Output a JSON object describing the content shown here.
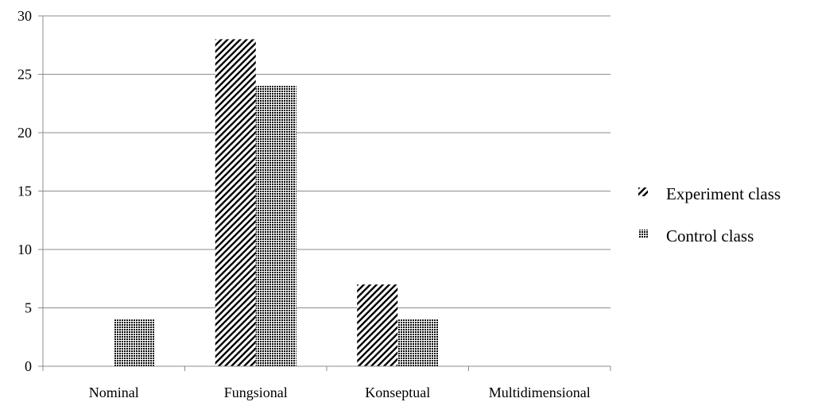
{
  "chart_data": {
    "type": "bar",
    "categories": [
      "Nominal",
      "Fungsional",
      "Konseptual",
      "Multidimensional"
    ],
    "series": [
      {
        "name": "Experiment class",
        "values": [
          0,
          28,
          7,
          0
        ],
        "pattern": "diagonal-hatch",
        "color": "#000000"
      },
      {
        "name": "Control class",
        "values": [
          4,
          24,
          4,
          0
        ],
        "pattern": "dense-dots",
        "color": "#000000"
      }
    ],
    "ylim": [
      0,
      30
    ],
    "yticks": [
      "0",
      "5",
      "10",
      "15",
      "20",
      "25",
      "30"
    ],
    "grid": true,
    "legend_position": "right"
  }
}
